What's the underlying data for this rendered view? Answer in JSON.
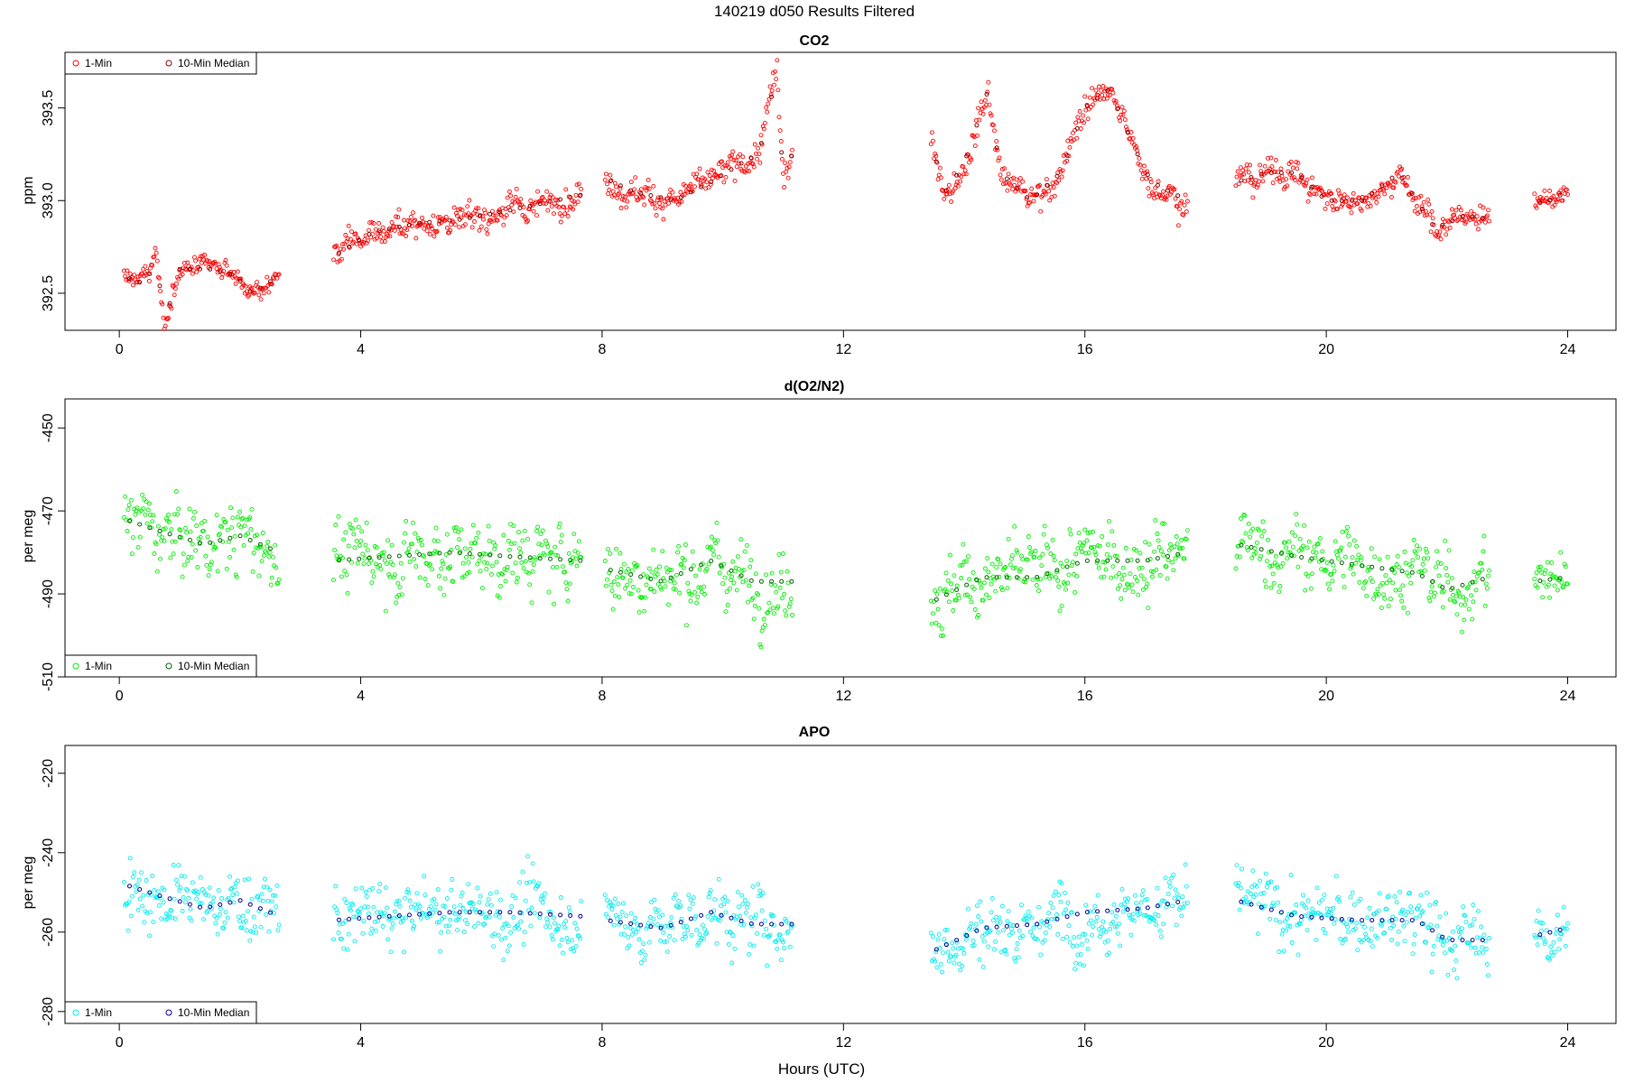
{
  "figure": {
    "title": "140219   d050   Results Filtered",
    "xlabel": "Hours (UTC)"
  },
  "chart_data": [
    {
      "type": "scatter",
      "title": "CO2",
      "xlabel": "",
      "ylabel": "ppm",
      "xlim": [
        -0.9,
        24.8
      ],
      "ylim": [
        392.3,
        393.8
      ],
      "xticks": [
        0,
        4,
        8,
        12,
        16,
        20,
        24
      ],
      "yticks": [
        392.5,
        393.0,
        393.5
      ],
      "ytick_labels": [
        "392.5",
        "393.0",
        "393.5"
      ],
      "legend": {
        "position": "top-left",
        "entries": [
          "1-Min",
          "10-Min Median"
        ]
      },
      "colors": {
        "1-Min": "#ff0000",
        "10-Min Median": "#8b0000"
      },
      "series": [
        {
          "name": "1-Min",
          "segments": [
            {
              "x_range": [
                0.08,
                2.65
              ],
              "anchors": [
                [
                  0.08,
                  392.6
                ],
                [
                  0.3,
                  392.55
                ],
                [
                  0.5,
                  392.6
                ],
                [
                  0.6,
                  392.75
                ],
                [
                  0.75,
                  392.3
                ],
                [
                  0.9,
                  392.55
                ],
                [
                  1.0,
                  392.63
                ],
                [
                  1.5,
                  392.63
                ],
                [
                  1.9,
                  392.6
                ],
                [
                  2.2,
                  392.5
                ],
                [
                  2.45,
                  392.55
                ],
                [
                  2.65,
                  392.6
                ]
              ],
              "noise": 0.025
            },
            {
              "x_range": [
                3.55,
                7.65
              ],
              "anchors": [
                [
                  3.55,
                  392.7
                ],
                [
                  4.2,
                  392.83
                ],
                [
                  5.0,
                  392.88
                ],
                [
                  5.7,
                  392.9
                ],
                [
                  6.5,
                  392.95
                ],
                [
                  7.65,
                  393.03
                ]
              ],
              "noise": 0.04
            },
            {
              "x_range": [
                8.05,
                11.15
              ],
              "anchors": [
                [
                  8.05,
                  393.12
                ],
                [
                  8.5,
                  393.05
                ],
                [
                  9.2,
                  393.0
                ],
                [
                  9.8,
                  393.1
                ],
                [
                  10.3,
                  393.2
                ],
                [
                  10.6,
                  393.25
                ],
                [
                  10.9,
                  393.7
                ],
                [
                  11.0,
                  393.1
                ],
                [
                  11.15,
                  393.25
                ]
              ],
              "noise": 0.04
            },
            {
              "x_range": [
                13.45,
                17.7
              ],
              "anchors": [
                [
                  13.45,
                  393.3
                ],
                [
                  13.7,
                  393.05
                ],
                [
                  14.0,
                  393.2
                ],
                [
                  14.4,
                  393.6
                ],
                [
                  14.6,
                  393.15
                ],
                [
                  15.1,
                  393.0
                ],
                [
                  15.6,
                  393.15
                ],
                [
                  16.0,
                  393.5
                ],
                [
                  16.4,
                  393.6
                ],
                [
                  16.8,
                  393.3
                ],
                [
                  17.1,
                  393.1
                ],
                [
                  17.7,
                  393.0
                ]
              ],
              "noise": 0.04
            },
            {
              "x_range": [
                18.5,
                22.7
              ],
              "anchors": [
                [
                  18.5,
                  393.1
                ],
                [
                  19.0,
                  393.15
                ],
                [
                  19.5,
                  393.15
                ],
                [
                  20.0,
                  393.0
                ],
                [
                  20.6,
                  393.0
                ],
                [
                  21.2,
                  393.15
                ],
                [
                  21.8,
                  392.85
                ],
                [
                  22.3,
                  392.92
                ],
                [
                  22.7,
                  392.9
                ]
              ],
              "noise": 0.04
            },
            {
              "x_range": [
                23.45,
                24.0
              ],
              "anchors": [
                [
                  23.45,
                  392.98
                ],
                [
                  23.7,
                  393.0
                ],
                [
                  24.0,
                  393.05
                ]
              ],
              "noise": 0.025
            }
          ]
        },
        {
          "name": "10-Min Median"
        }
      ]
    },
    {
      "type": "scatter",
      "title": "d(O2/N2)",
      "xlabel": "",
      "ylabel": "per meg",
      "xlim": [
        -0.9,
        24.8
      ],
      "ylim": [
        -510,
        -443
      ],
      "xticks": [
        0,
        4,
        8,
        12,
        16,
        20,
        24
      ],
      "yticks": [
        -510,
        -490,
        -470,
        -450
      ],
      "ytick_labels": [
        "-510",
        "-490",
        "-470",
        "-450"
      ],
      "legend": {
        "position": "bottom-left",
        "entries": [
          "1-Min",
          "10-Min Median"
        ]
      },
      "colors": {
        "1-Min": "#00ee00",
        "10-Min Median": "#006400"
      },
      "series": [
        {
          "name": "1-Min",
          "segments": [
            {
              "x_range": [
                0.08,
                2.65
              ],
              "anchors": [
                [
                  0.08,
                  -472
                ],
                [
                  0.7,
                  -475
                ],
                [
                  1.4,
                  -478
                ],
                [
                  2.0,
                  -476
                ],
                [
                  2.65,
                  -480
                ]
              ],
              "noise": 4.5
            },
            {
              "x_range": [
                3.55,
                7.65
              ],
              "anchors": [
                [
                  3.55,
                  -482
                ],
                [
                  4.5,
                  -481
                ],
                [
                  5.5,
                  -480
                ],
                [
                  6.5,
                  -481
                ],
                [
                  7.65,
                  -482
                ]
              ],
              "noise": 4.5
            },
            {
              "x_range": [
                8.05,
                11.15
              ],
              "anchors": [
                [
                  8.05,
                  -484
                ],
                [
                  9.0,
                  -487
                ],
                [
                  9.8,
                  -482
                ],
                [
                  10.5,
                  -487
                ],
                [
                  11.15,
                  -487
                ]
              ],
              "noise": 4.5
            },
            {
              "x_range": [
                13.45,
                17.7
              ],
              "anchors": [
                [
                  13.45,
                  -492
                ],
                [
                  14.3,
                  -486
                ],
                [
                  15.2,
                  -486
                ],
                [
                  16.0,
                  -482
                ],
                [
                  17.0,
                  -482
                ],
                [
                  17.7,
                  -480
                ]
              ],
              "noise": 4.5
            },
            {
              "x_range": [
                18.5,
                22.7
              ],
              "anchors": [
                [
                  18.5,
                  -478
                ],
                [
                  19.5,
                  -481
                ],
                [
                  20.5,
                  -483
                ],
                [
                  21.5,
                  -485
                ],
                [
                  22.0,
                  -489
                ],
                [
                  22.7,
                  -486
                ]
              ],
              "noise": 4.5
            },
            {
              "x_range": [
                23.45,
                24.0
              ],
              "anchors": [
                [
                  23.45,
                  -487
                ],
                [
                  24.0,
                  -486
                ]
              ],
              "noise": 3.5
            }
          ]
        },
        {
          "name": "10-Min Median"
        }
      ]
    },
    {
      "type": "scatter",
      "title": "APO",
      "xlabel": "Hours (UTC)",
      "ylabel": "per meg",
      "xlim": [
        -0.9,
        24.8
      ],
      "ylim": [
        -283,
        -213
      ],
      "xticks": [
        0,
        4,
        8,
        12,
        16,
        20,
        24
      ],
      "yticks": [
        -280,
        -260,
        -240,
        -220
      ],
      "ytick_labels": [
        "-280",
        "-260",
        "-240",
        "-220"
      ],
      "legend": {
        "position": "bottom-left",
        "entries": [
          "1-Min",
          "10-Min Median"
        ]
      },
      "colors": {
        "1-Min": "#00eeee",
        "10-Min Median": "#00008b"
      },
      "series": [
        {
          "name": "1-Min",
          "segments": [
            {
              "x_range": [
                0.08,
                2.65
              ],
              "anchors": [
                [
                  0.08,
                  -248
                ],
                [
                  0.7,
                  -251
                ],
                [
                  1.4,
                  -254
                ],
                [
                  2.0,
                  -252
                ],
                [
                  2.65,
                  -256
                ]
              ],
              "noise": 4.5
            },
            {
              "x_range": [
                3.55,
                7.65
              ],
              "anchors": [
                [
                  3.55,
                  -257
                ],
                [
                  4.5,
                  -256
                ],
                [
                  5.5,
                  -255
                ],
                [
                  6.5,
                  -255
                ],
                [
                  7.65,
                  -256
                ]
              ],
              "noise": 4.5
            },
            {
              "x_range": [
                8.05,
                11.15
              ],
              "anchors": [
                [
                  8.05,
                  -257
                ],
                [
                  9.0,
                  -259
                ],
                [
                  9.8,
                  -255
                ],
                [
                  10.5,
                  -258
                ],
                [
                  11.15,
                  -258
                ]
              ],
              "noise": 4.5
            },
            {
              "x_range": [
                13.45,
                17.7
              ],
              "anchors": [
                [
                  13.45,
                  -265
                ],
                [
                  14.3,
                  -259
                ],
                [
                  15.2,
                  -258
                ],
                [
                  16.0,
                  -255
                ],
                [
                  17.0,
                  -254
                ],
                [
                  17.7,
                  -252
                ]
              ],
              "noise": 4.5
            },
            {
              "x_range": [
                18.5,
                22.7
              ],
              "anchors": [
                [
                  18.5,
                  -252
                ],
                [
                  19.5,
                  -256
                ],
                [
                  20.5,
                  -257
                ],
                [
                  21.5,
                  -257
                ],
                [
                  22.0,
                  -262
                ],
                [
                  22.7,
                  -262
                ]
              ],
              "noise": 4.5
            },
            {
              "x_range": [
                23.45,
                24.0
              ],
              "anchors": [
                [
                  23.45,
                  -261
                ],
                [
                  24.0,
                  -259
                ]
              ],
              "noise": 3.5
            }
          ]
        },
        {
          "name": "10-Min Median"
        }
      ]
    }
  ]
}
